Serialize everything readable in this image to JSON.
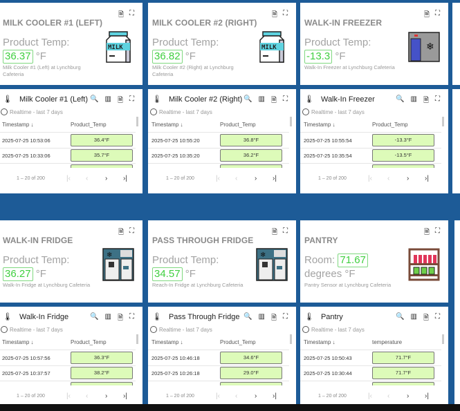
{
  "value_cards": [
    {
      "title": "MILK COOLER #1 (LEFT)",
      "label": "Product Temp:",
      "value": "36.37",
      "unit": "°F",
      "desc": "Milk Cooler #1 (Left) at Lynchburg Cafeteria",
      "icon": "milk-carton-icon"
    },
    {
      "title": "MILK COOLER #2 (RIGHT)",
      "label": "Product Temp:",
      "value": "36.82",
      "unit": "°F",
      "desc": "Milk Cooler #2 (Right) at Lynchburg Cafeteria",
      "icon": "milk-carton-icon"
    },
    {
      "title": "WALK-IN FREEZER",
      "label": "Product Temp:",
      "value": "-13.3",
      "unit": "°F",
      "desc": "Walk-In Freezer at Lynchburg Cafeteria",
      "icon": "freezer-icon"
    },
    {
      "title": "WALK-IN FRIDGE",
      "label": "Product Temp:",
      "value": "36.27",
      "unit": "°F",
      "desc": "Walk-In Fridge at Lynchburg Cafeteria",
      "icon": "fridge-icon"
    },
    {
      "title": "PASS THROUGH FRIDGE",
      "label": "Product Temp:",
      "value": "34.57",
      "unit": "°F",
      "desc": "Reach-In Fridge at Lynchburg Cafeteria",
      "icon": "fridge-icon"
    },
    {
      "title": "PANTRY",
      "label": "Room:",
      "value": "71.67",
      "unit": "degrees °F",
      "desc": "Pantry Sensor at Lynchburg Cafeteria",
      "icon": "pantry-shelf-icon"
    }
  ],
  "table_cards": [
    {
      "title": "Milk Cooler #1 (Left)",
      "col2": "Product_Temp",
      "rows": [
        [
          "2025-07-25 10:53:06",
          "36.4°F"
        ],
        [
          "2025-07-25 10:33:06",
          "35.7°F"
        ]
      ]
    },
    {
      "title": "Milk Cooler #2 (Right)",
      "col2": "Product_Temp",
      "rows": [
        [
          "2025-07-25 10:55:20",
          "36.8°F"
        ],
        [
          "2025-07-25 10:35:20",
          "36.2°F"
        ]
      ]
    },
    {
      "title": "Walk-In Freezer",
      "col2": "Product_Temp",
      "rows": [
        [
          "2025-07-25 10:55:54",
          "-13.3°F"
        ],
        [
          "2025-07-25 10:35:54",
          "-13.5°F"
        ]
      ]
    },
    {
      "title": "Walk-In Fridge",
      "col2": "Product_Temp",
      "rows": [
        [
          "2025-07-25 10:57:56",
          "36.3°F"
        ],
        [
          "2025-07-25 10:37:57",
          "38.2°F"
        ]
      ]
    },
    {
      "title": "Pass Through Fridge",
      "col2": "Product_Temp",
      "rows": [
        [
          "2025-07-25 10:46:18",
          "34.6°F"
        ],
        [
          "2025-07-25 10:26:18",
          "29.0°F"
        ]
      ]
    },
    {
      "title": "Pantry",
      "col2": "temperature",
      "rows": [
        [
          "2025-07-25 10:50:43",
          "71.7°F"
        ],
        [
          "2025-07-25 10:30:44",
          "71.7°F"
        ]
      ]
    }
  ],
  "common": {
    "realtime": "Realtime - last 7 days",
    "col1": "Timestamp ↓",
    "paging": "1 – 20 of 200"
  },
  "colors": {
    "background": "#1d5b97",
    "value_border": "#7fd87f",
    "cell_bg": "#ddfbb9"
  }
}
